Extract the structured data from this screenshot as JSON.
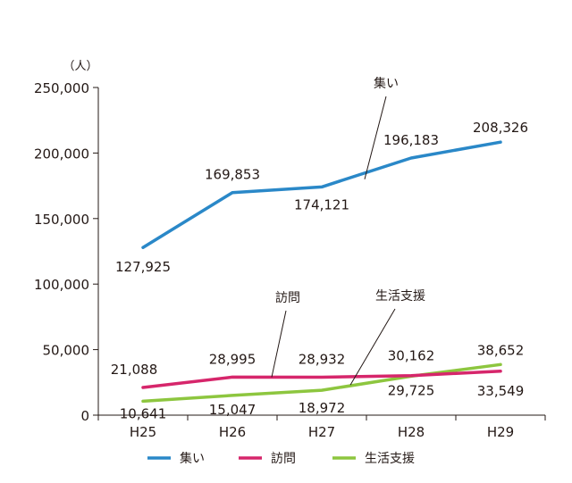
{
  "chart_data": {
    "type": "line",
    "title": "",
    "xlabel": "",
    "ylabel": "（人）",
    "ylim": [
      0,
      250000
    ],
    "yticks": [
      "0",
      "50,000",
      "100,000",
      "150,000",
      "200,000",
      "250,000"
    ],
    "yticks_values": [
      0,
      50000,
      100000,
      150000,
      200000,
      250000
    ],
    "categories": [
      "H25",
      "H26",
      "H27",
      "H28",
      "H29"
    ],
    "grid": false,
    "legend_position": "bottom",
    "series": [
      {
        "name": "集い",
        "color": "#2a88c8",
        "values": [
          127925,
          169853,
          174121,
          196183,
          208326
        ],
        "labels": [
          "127,925",
          "169,853",
          "174,121",
          "196,183",
          "208,326"
        ],
        "callout": "集い"
      },
      {
        "name": "訪問",
        "color": "#d6266b",
        "values": [
          21088,
          28995,
          28932,
          30162,
          33549
        ],
        "labels": [
          "21,088",
          "28,995",
          "28,932",
          "30,162",
          "33,549"
        ],
        "callout": "訪問"
      },
      {
        "name": "生活支援",
        "color": "#8dc63f",
        "values": [
          10641,
          15047,
          18972,
          29725,
          38652
        ],
        "labels": [
          "10,641",
          "15,047",
          "18,972",
          "29,725",
          "38,652"
        ],
        "callout": "生活支援"
      }
    ]
  }
}
